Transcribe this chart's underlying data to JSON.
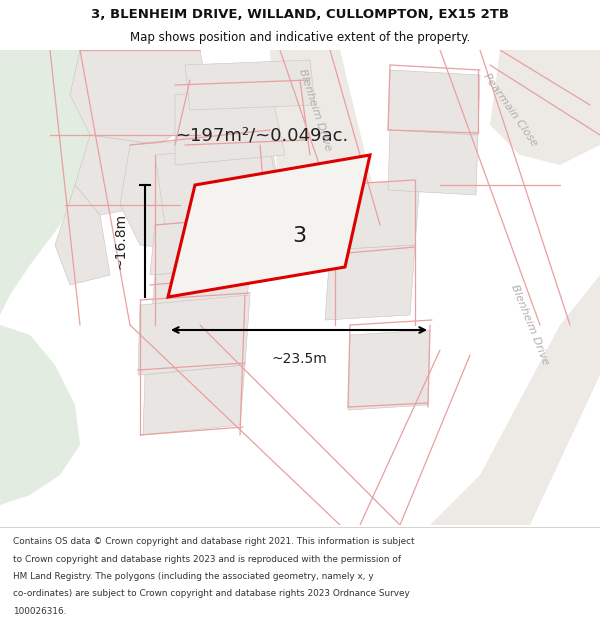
{
  "title_line1": "3, BLENHEIM DRIVE, WILLAND, CULLOMPTON, EX15 2TB",
  "title_line2": "Map shows position and indicative extent of the property.",
  "area_label": "~197m²/~0.049ac.",
  "width_label": "~23.5m",
  "height_label": "~16.8m",
  "plot_number": "3",
  "map_bg": "#f5f3f0",
  "parcel_fill": "#e8e5e2",
  "parcel_edge": "#c8c4c0",
  "plot_fill": "#f5f3f0",
  "plot_outline_color": "#dd0000",
  "green_area": "#e2ece0",
  "road_fill": "#eeebe8",
  "boundary_color": "#e8a0a0",
  "street_label_color": "#b0b0b0",
  "text_color": "#222222",
  "footer_lines": [
    "Contains OS data © Crown copyright and database right 2021. This information is subject",
    "to Crown copyright and database rights 2023 and is reproduced with the permission of",
    "HM Land Registry. The polygons (including the associated geometry, namely x, y",
    "co-ordinates) are subject to Crown copyright and database rights 2023 Ordnance Survey",
    "100026316."
  ],
  "figsize": [
    6.0,
    6.25
  ],
  "dpi": 100
}
